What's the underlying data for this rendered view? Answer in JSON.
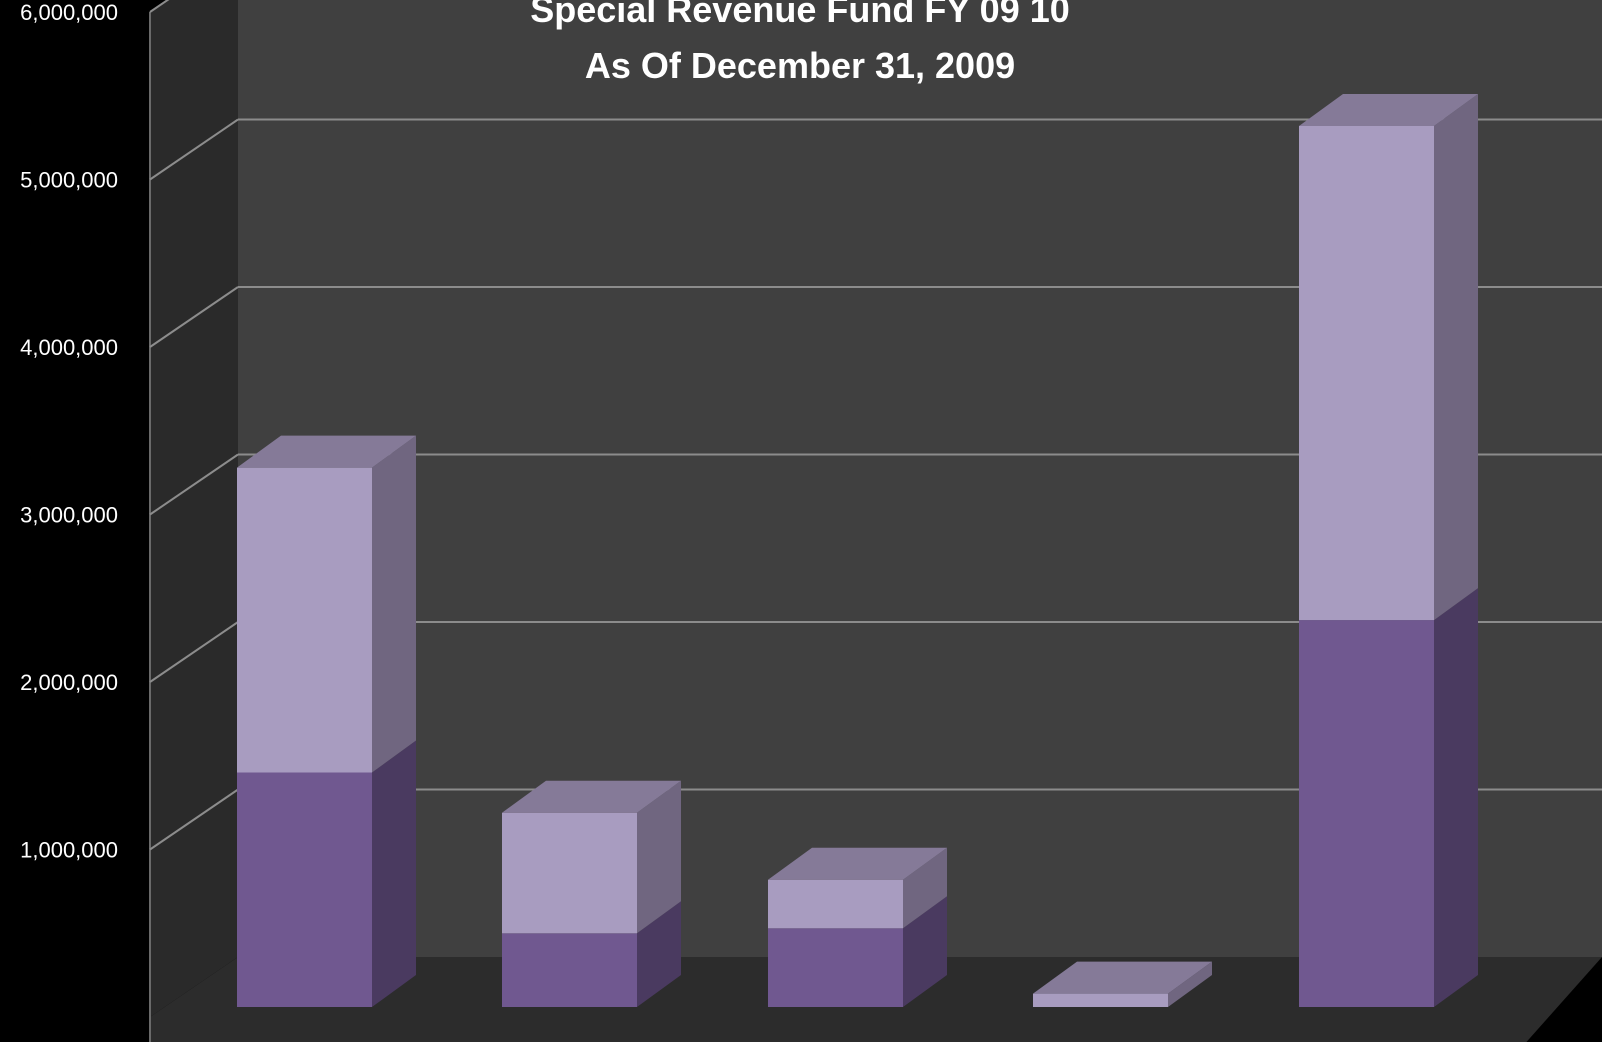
{
  "chart_data": {
    "type": "bar",
    "stacked": true,
    "title": "Special Revenue Fund FY 09 10",
    "subtitle": "As Of December 31, 2009",
    "xlabel": "",
    "ylabel": "",
    "ylim": [
      0,
      6000000
    ],
    "yticks": [
      "6,000,000",
      "5,000,000",
      "4,000,000",
      "3,000,000",
      "2,000,000",
      "1,000,000"
    ],
    "ytick_values": [
      6000000,
      5000000,
      4000000,
      3000000,
      2000000,
      1000000
    ],
    "grid": true,
    "legend": "none",
    "categories": [
      "",
      "",
      "",
      "",
      ""
    ],
    "series": [
      {
        "values": [
          1400000,
          440000,
          470000,
          0,
          2310000
        ]
      },
      {
        "values": [
          1820000,
          720000,
          290000,
          80000,
          2950000
        ]
      }
    ],
    "colors": {
      "page_background": "#000000",
      "wall": "#404040",
      "side_wall": "#2a2a2a",
      "floor": "#2c2c2c",
      "gridline": "#8c8c8c",
      "text": "#ffffff",
      "series_1_front": "#705890",
      "series_1_side": "#4a3a60",
      "series_1_top": "#84709e",
      "series_2_front": "#a89cc0",
      "series_2_side": "#706680",
      "series_2_top": "#857a98"
    }
  }
}
